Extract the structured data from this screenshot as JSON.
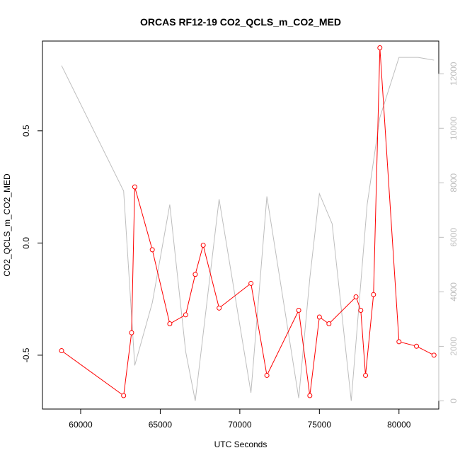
{
  "chart_data": {
    "type": "line",
    "title": "ORCAS RF12-19 CO2_QCLS_m_CO2_MED",
    "xlabel": "UTC Seconds",
    "ylabel": "CO2_QCLS_m_CO2_MED",
    "xlim": [
      57600,
      82500
    ],
    "ylim": [
      -0.74,
      0.9
    ],
    "y2lim": [
      -300,
      13200
    ],
    "xticks": [
      60000,
      65000,
      70000,
      75000,
      80000
    ],
    "yticks": [
      -0.5,
      0.0,
      0.5
    ],
    "y2ticks": [
      0,
      2000,
      4000,
      6000,
      8000,
      10000,
      12000
    ],
    "grid": false,
    "series": [
      {
        "color": "#ff0000",
        "marker": "circle",
        "axis": "left",
        "x": [
          58800,
          62700,
          63200,
          63400,
          64500,
          65600,
          66600,
          67200,
          67700,
          68700,
          70700,
          71700,
          73700,
          74400,
          75000,
          75600,
          77300,
          77600,
          77900,
          78400,
          78800,
          80000,
          81100,
          82200
        ],
        "y": [
          -0.48,
          -0.68,
          -0.4,
          0.25,
          -0.03,
          -0.36,
          -0.32,
          -0.14,
          -0.01,
          -0.29,
          -0.18,
          -0.59,
          -0.3,
          -0.68,
          -0.33,
          -0.36,
          -0.24,
          -0.3,
          -0.59,
          -0.23,
          0.87,
          -0.44,
          -0.46,
          -0.5
        ]
      },
      {
        "color": "#bebebe",
        "marker": "none",
        "axis": "right",
        "x": [
          58800,
          62700,
          63400,
          64500,
          65600,
          66600,
          67200,
          68700,
          70700,
          71700,
          73700,
          74400,
          75000,
          75800,
          77000,
          78000,
          78800,
          80000,
          81200,
          82200
        ],
        "y": [
          12300,
          7700,
          1300,
          3600,
          7200,
          1800,
          0,
          7400,
          300,
          7500,
          100,
          4500,
          7600,
          6500,
          0,
          7200,
          10400,
          12600,
          12600,
          12500
        ]
      }
    ]
  }
}
